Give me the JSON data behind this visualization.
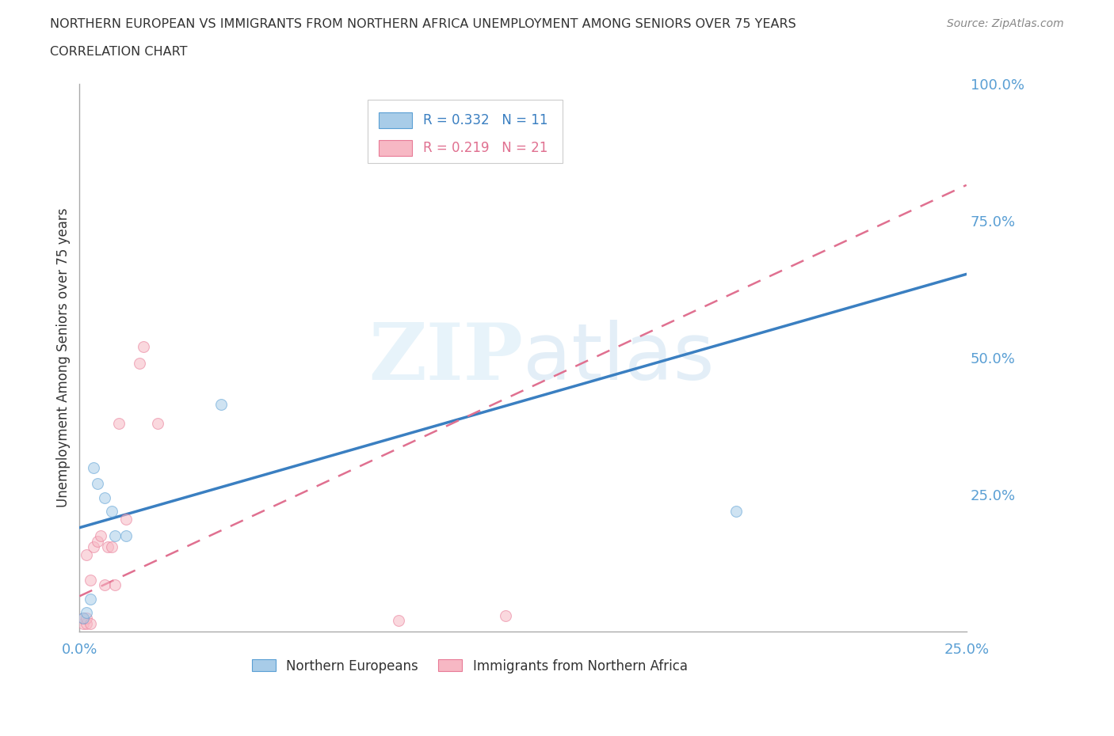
{
  "title_line1": "NORTHERN EUROPEAN VS IMMIGRANTS FROM NORTHERN AFRICA UNEMPLOYMENT AMONG SENIORS OVER 75 YEARS",
  "title_line2": "CORRELATION CHART",
  "source": "Source: ZipAtlas.com",
  "ylabel": "Unemployment Among Seniors over 75 years",
  "watermark_zip": "ZIP",
  "watermark_atlas": "atlas",
  "blue_R": 0.332,
  "blue_N": 11,
  "pink_R": 0.219,
  "pink_N": 21,
  "blue_label": "Northern Europeans",
  "pink_label": "Immigrants from Northern Africa",
  "blue_color": "#a8cce8",
  "pink_color": "#f7b8c4",
  "blue_edge_color": "#5a9fd4",
  "pink_edge_color": "#e87a96",
  "blue_line_color": "#3a7fc1",
  "pink_line_color": "#e07090",
  "xlim": [
    0.0,
    0.25
  ],
  "ylim": [
    0.0,
    1.0
  ],
  "x_ticks": [
    0.0,
    0.05,
    0.1,
    0.15,
    0.2,
    0.25
  ],
  "x_tick_labels": [
    "0.0%",
    "",
    "",
    "",
    "",
    "25.0%"
  ],
  "y_ticks_right": [
    0.25,
    0.5,
    0.75,
    1.0
  ],
  "y_tick_labels_right": [
    "25.0%",
    "50.0%",
    "75.0%",
    "100.0%"
  ],
  "blue_x": [
    0.001,
    0.002,
    0.003,
    0.004,
    0.005,
    0.007,
    0.009,
    0.01,
    0.013,
    0.185,
    0.04
  ],
  "blue_y": [
    0.025,
    0.035,
    0.06,
    0.3,
    0.27,
    0.245,
    0.22,
    0.175,
    0.175,
    0.22,
    0.415
  ],
  "pink_x": [
    0.001,
    0.001,
    0.002,
    0.002,
    0.002,
    0.003,
    0.003,
    0.004,
    0.005,
    0.006,
    0.007,
    0.008,
    0.009,
    0.01,
    0.011,
    0.013,
    0.017,
    0.018,
    0.022,
    0.09,
    0.12
  ],
  "pink_y": [
    0.015,
    0.025,
    0.015,
    0.025,
    0.14,
    0.015,
    0.095,
    0.155,
    0.165,
    0.175,
    0.085,
    0.155,
    0.155,
    0.085,
    0.38,
    0.205,
    0.49,
    0.52,
    0.38,
    0.02,
    0.03
  ],
  "bg_color": "#ffffff",
  "grid_color": "#d0d0d0",
  "title_color": "#333333",
  "axis_tick_color": "#5a9fd4",
  "marker_size": 100,
  "marker_alpha": 0.55,
  "trend_blue_intercept": 0.19,
  "trend_blue_slope": 1.85,
  "trend_pink_intercept": 0.065,
  "trend_pink_slope": 3.0
}
